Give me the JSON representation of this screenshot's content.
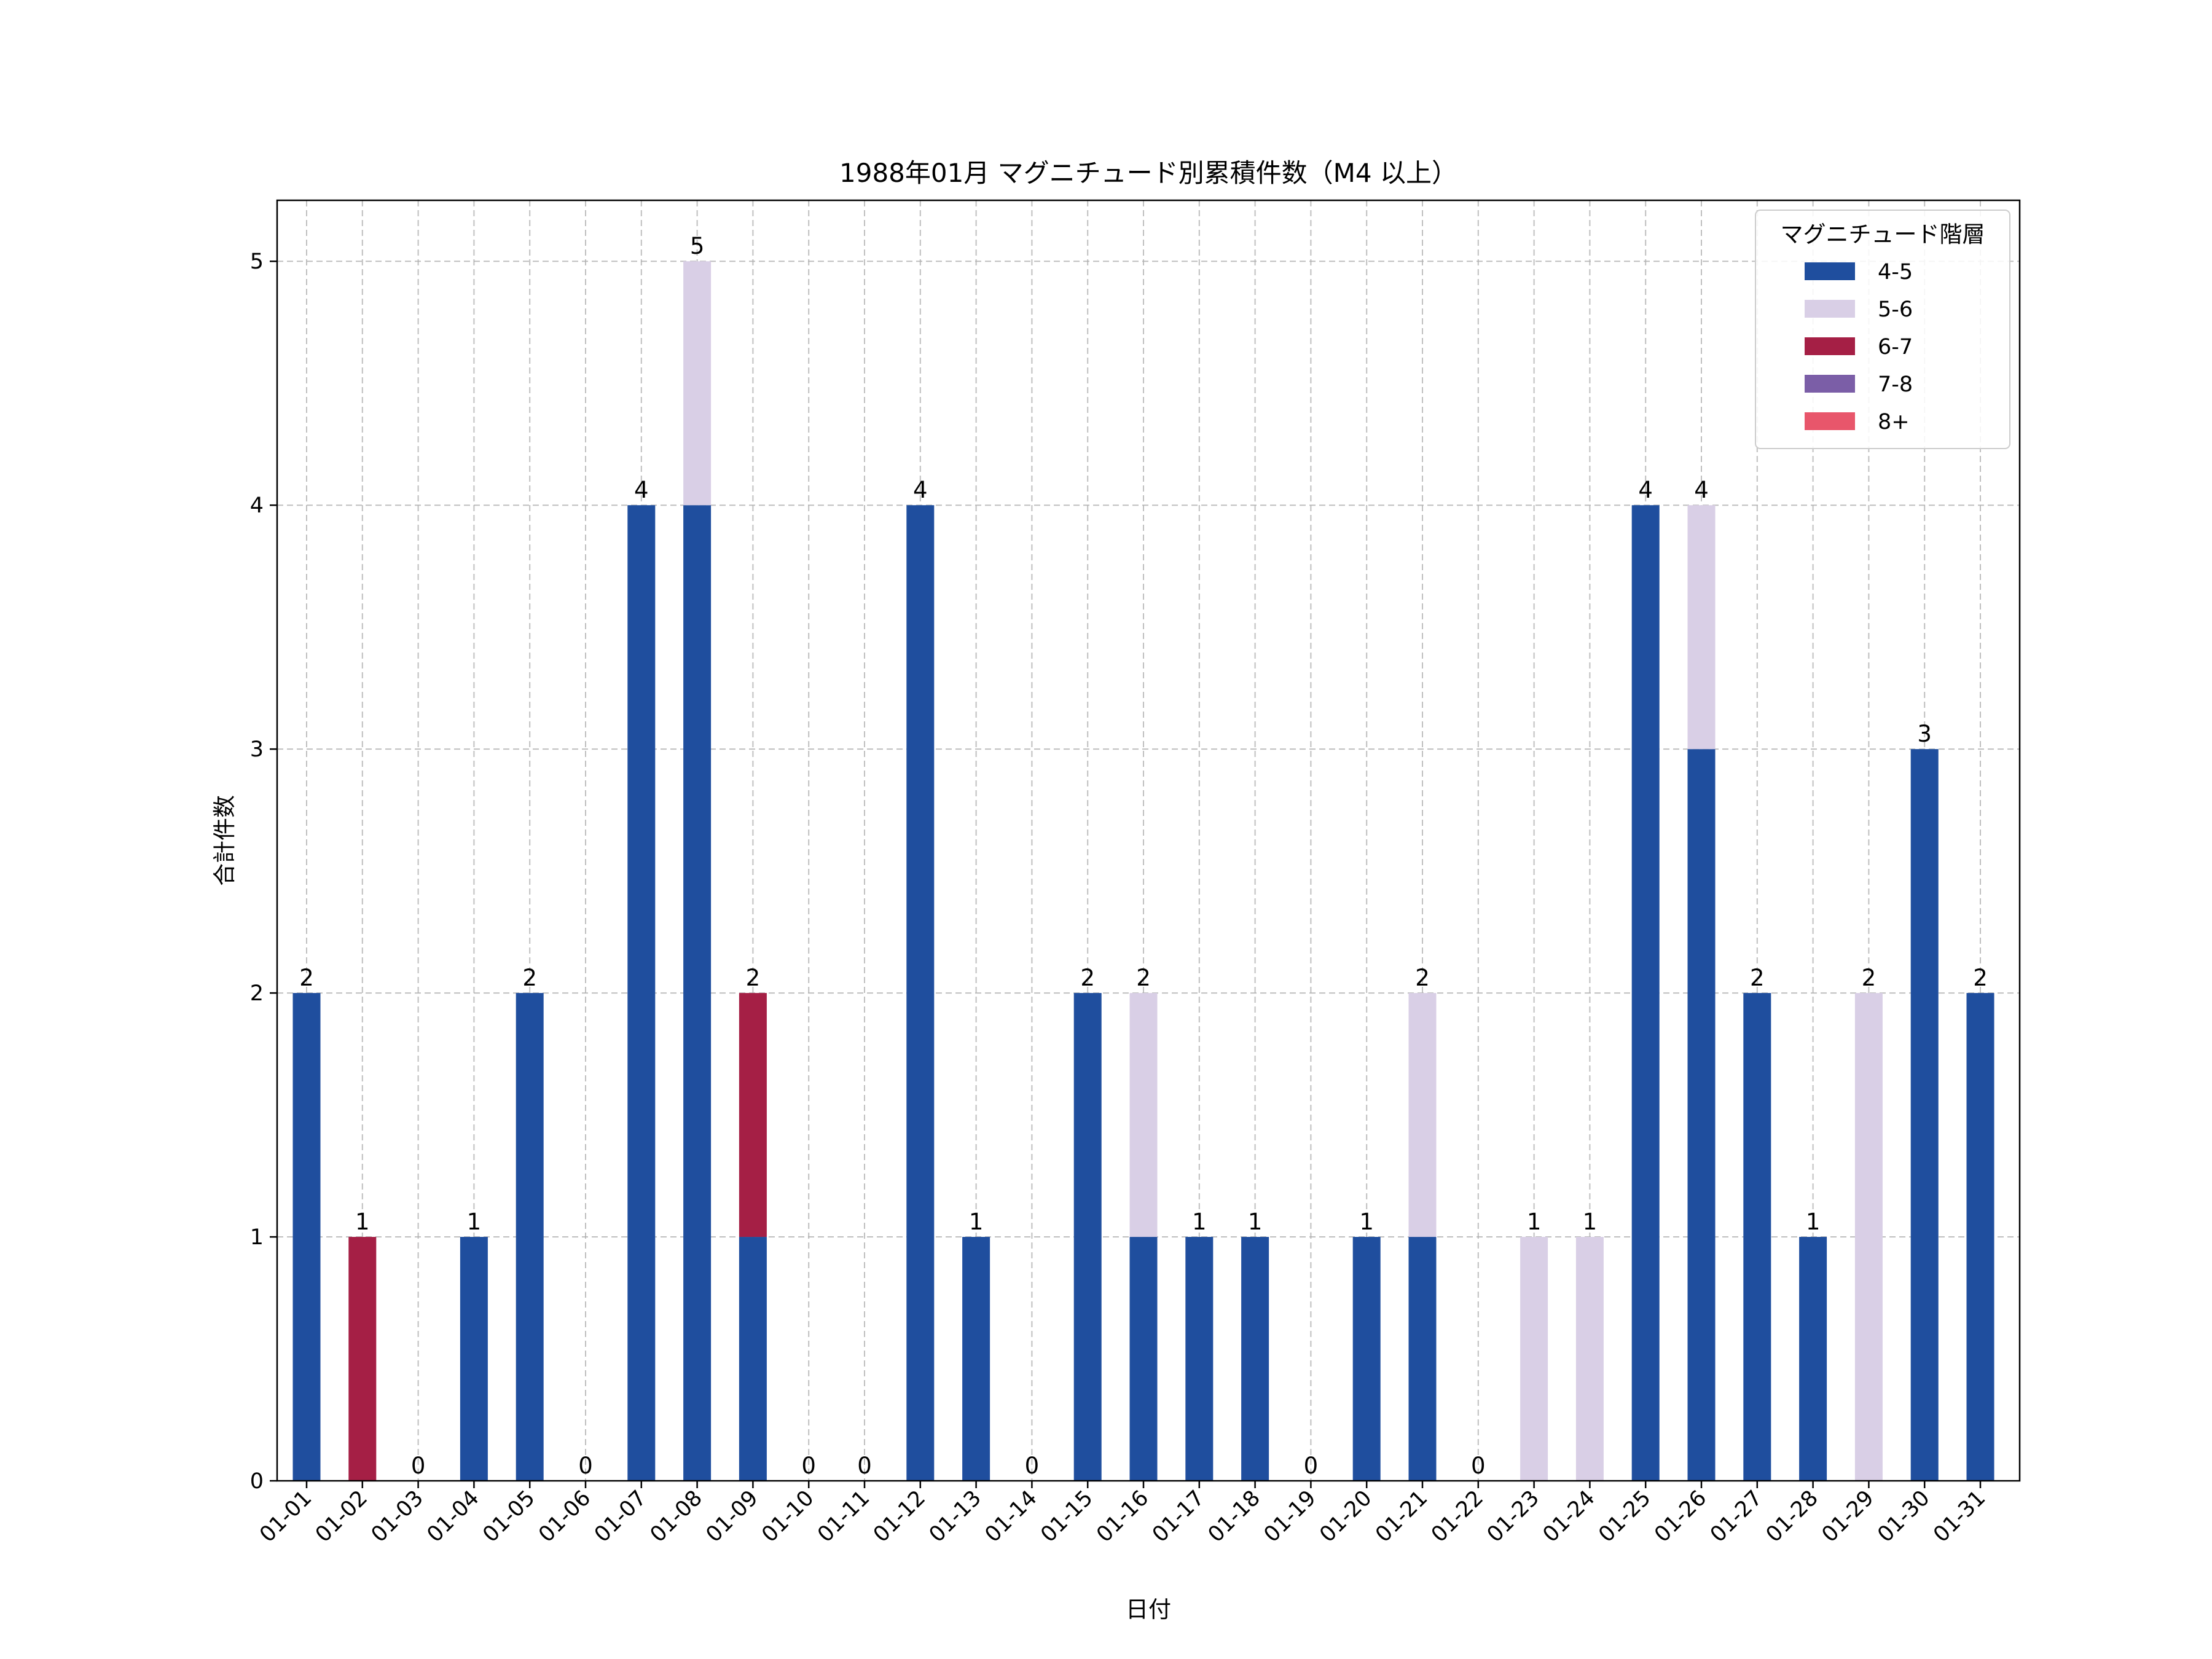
{
  "chart_data": {
    "type": "bar",
    "stacked": true,
    "title": "1988年01月 マグニチュード別累積件数（M4 以上）",
    "xlabel": "日付",
    "ylabel": "合計件数",
    "ylim": [
      0,
      5.25
    ],
    "yticks": [
      0,
      1,
      2,
      3,
      4,
      5
    ],
    "grid": true,
    "legend": {
      "title": "マグニチュード階層",
      "placement": "top-right"
    },
    "categories": [
      "01-01",
      "01-02",
      "01-03",
      "01-04",
      "01-05",
      "01-06",
      "01-07",
      "01-08",
      "01-09",
      "01-10",
      "01-11",
      "01-12",
      "01-13",
      "01-14",
      "01-15",
      "01-16",
      "01-17",
      "01-18",
      "01-19",
      "01-20",
      "01-21",
      "01-22",
      "01-23",
      "01-24",
      "01-25",
      "01-26",
      "01-27",
      "01-28",
      "01-29",
      "01-30",
      "01-31"
    ],
    "series": [
      {
        "name": "4-5",
        "color": "#1f4e9e",
        "values": [
          2,
          0,
          0,
          1,
          2,
          0,
          4,
          4,
          1,
          0,
          0,
          4,
          1,
          0,
          2,
          1,
          1,
          1,
          0,
          1,
          1,
          0,
          0,
          0,
          4,
          3,
          2,
          1,
          0,
          3,
          2
        ]
      },
      {
        "name": "5-6",
        "color": "#d9cfe6",
        "values": [
          0,
          0,
          0,
          0,
          0,
          0,
          0,
          1,
          0,
          0,
          0,
          0,
          0,
          0,
          0,
          1,
          0,
          0,
          0,
          0,
          1,
          0,
          1,
          1,
          0,
          1,
          0,
          0,
          2,
          0,
          0
        ]
      },
      {
        "name": "6-7",
        "color": "#a51f45",
        "values": [
          0,
          1,
          0,
          0,
          0,
          0,
          0,
          0,
          1,
          0,
          0,
          0,
          0,
          0,
          0,
          0,
          0,
          0,
          0,
          0,
          0,
          0,
          0,
          0,
          0,
          0,
          0,
          0,
          0,
          0,
          0
        ]
      },
      {
        "name": "7-8",
        "color": "#7b5ea7",
        "values": [
          0,
          0,
          0,
          0,
          0,
          0,
          0,
          0,
          0,
          0,
          0,
          0,
          0,
          0,
          0,
          0,
          0,
          0,
          0,
          0,
          0,
          0,
          0,
          0,
          0,
          0,
          0,
          0,
          0,
          0,
          0
        ]
      },
      {
        "name": "8+",
        "color": "#e8566b",
        "values": [
          0,
          0,
          0,
          0,
          0,
          0,
          0,
          0,
          0,
          0,
          0,
          0,
          0,
          0,
          0,
          0,
          0,
          0,
          0,
          0,
          0,
          0,
          0,
          0,
          0,
          0,
          0,
          0,
          0,
          0,
          0
        ]
      }
    ],
    "totals": [
      2,
      1,
      0,
      1,
      2,
      0,
      4,
      5,
      2,
      0,
      0,
      4,
      1,
      0,
      2,
      2,
      1,
      1,
      0,
      1,
      2,
      0,
      1,
      1,
      4,
      4,
      2,
      1,
      2,
      3,
      2
    ]
  }
}
